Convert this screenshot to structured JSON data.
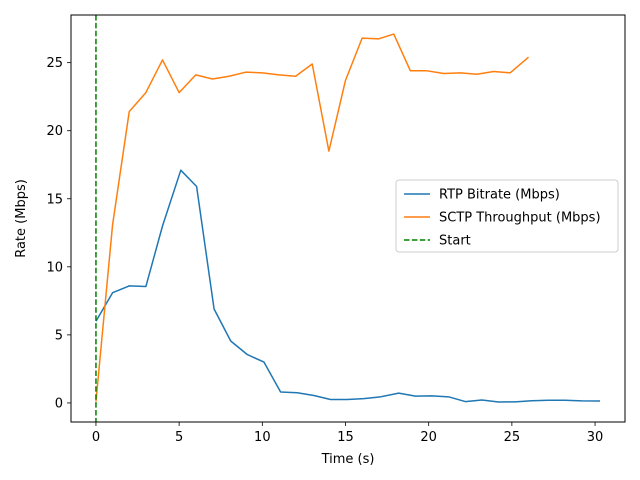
{
  "chart_data": {
    "type": "line",
    "xlabel": "Time (s)",
    "ylabel": "Rate (Mbps)",
    "xlim": [
      -1.5,
      31.8
    ],
    "ylim": [
      -1.4,
      28.5
    ],
    "xticks": [
      0,
      5,
      10,
      15,
      20,
      25,
      30
    ],
    "yticks": [
      0,
      5,
      10,
      15,
      20,
      25
    ],
    "grid": false,
    "legend_position": "center-right",
    "series": [
      {
        "name": "RTP Bitrate (Mbps)",
        "color": "#1f77b4",
        "style": "solid",
        "points": [
          [
            0,
            6.0
          ],
          [
            1,
            8.1
          ],
          [
            2,
            8.6
          ],
          [
            3,
            8.55
          ],
          [
            4,
            13.0
          ],
          [
            5.1,
            17.1
          ],
          [
            6.05,
            15.9
          ],
          [
            7.1,
            6.9
          ],
          [
            8.1,
            4.55
          ],
          [
            9.1,
            3.55
          ],
          [
            10.1,
            3.0
          ],
          [
            11.1,
            0.8
          ],
          [
            12.1,
            0.75
          ],
          [
            13.1,
            0.55
          ],
          [
            14.1,
            0.25
          ],
          [
            15.1,
            0.25
          ],
          [
            16.1,
            0.32
          ],
          [
            17.1,
            0.45
          ],
          [
            18.2,
            0.72
          ],
          [
            19.2,
            0.5
          ],
          [
            20.2,
            0.52
          ],
          [
            21.2,
            0.45
          ],
          [
            22.2,
            0.1
          ],
          [
            23.2,
            0.22
          ],
          [
            24.2,
            0.07
          ],
          [
            25.2,
            0.08
          ],
          [
            26.2,
            0.16
          ],
          [
            27.2,
            0.2
          ],
          [
            28.2,
            0.2
          ],
          [
            29.2,
            0.15
          ],
          [
            30.3,
            0.14
          ]
        ]
      },
      {
        "name": "SCTP Throughput (Mbps)",
        "color": "#ff7f0e",
        "style": "solid",
        "points": [
          [
            0,
            0.1
          ],
          [
            1,
            13.1
          ],
          [
            2,
            21.4
          ],
          [
            3,
            22.8
          ],
          [
            4,
            25.2
          ],
          [
            5,
            22.8
          ],
          [
            6,
            24.1
          ],
          [
            7,
            23.8
          ],
          [
            8,
            24.0
          ],
          [
            9,
            24.3
          ],
          [
            10,
            24.25
          ],
          [
            11,
            24.1
          ],
          [
            12,
            24.0
          ],
          [
            13,
            24.9
          ],
          [
            14,
            18.5
          ],
          [
            15,
            23.7
          ],
          [
            16,
            26.8
          ],
          [
            17,
            26.75
          ],
          [
            17.9,
            27.1
          ],
          [
            18.9,
            24.4
          ],
          [
            19.9,
            24.4
          ],
          [
            20.9,
            24.2
          ],
          [
            21.9,
            24.25
          ],
          [
            22.9,
            24.15
          ],
          [
            23.9,
            24.35
          ],
          [
            24.9,
            24.25
          ],
          [
            26,
            25.4
          ]
        ]
      },
      {
        "name": "Start",
        "color": "#008000",
        "style": "dashed",
        "vline_x": 0
      }
    ]
  }
}
